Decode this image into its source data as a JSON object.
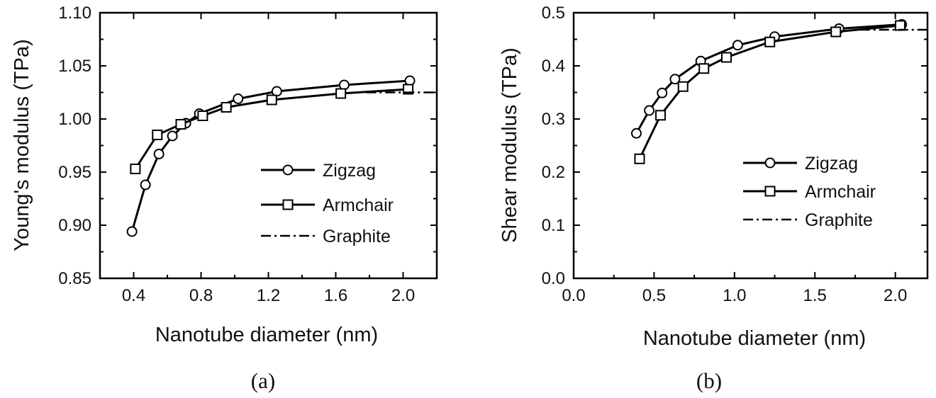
{
  "chart_data": [
    {
      "type": "line",
      "caption": "(a)",
      "xlabel": "Nanotube diameter  (nm)",
      "ylabel": "Young's modulus  (TPa)",
      "xlim": [
        0.2,
        2.2
      ],
      "ylim": [
        0.85,
        1.1
      ],
      "xticks": [
        0.4,
        0.8,
        1.2,
        1.6,
        2.0
      ],
      "xtick_labels": [
        "0.4",
        "0.8",
        "1.2",
        "1.6",
        "2.0"
      ],
      "yticks": [
        0.85,
        0.9,
        0.95,
        1.0,
        1.05,
        1.1
      ],
      "ytick_labels": [
        "0.85",
        "0.90",
        "0.95",
        "1.00",
        "1.05",
        "1.10"
      ],
      "legend_position": "bottom-right",
      "series": [
        {
          "name": "Zigzag",
          "marker": "circle",
          "x": [
            0.39,
            0.47,
            0.55,
            0.63,
            0.71,
            0.79,
            1.02,
            1.25,
            1.65,
            2.04
          ],
          "y": [
            0.894,
            0.938,
            0.967,
            0.984,
            0.996,
            1.005,
            1.019,
            1.026,
            1.032,
            1.036
          ]
        },
        {
          "name": "Armchair",
          "marker": "square",
          "x": [
            0.41,
            0.54,
            0.68,
            0.81,
            0.95,
            1.22,
            1.63,
            2.03
          ],
          "y": [
            0.953,
            0.985,
            0.995,
            1.003,
            1.011,
            1.018,
            1.024,
            1.028
          ]
        },
        {
          "name": "Graphite",
          "marker": "none",
          "style": "dash-dot",
          "x": [
            1.78,
            2.2
          ],
          "y": [
            1.025,
            1.025
          ]
        }
      ]
    },
    {
      "type": "line",
      "caption": "(b)",
      "xlabel": "Nanotube diameter  (nm)",
      "ylabel": "Shear modulus  (TPa)",
      "xlim": [
        0.0,
        2.2
      ],
      "ylim": [
        0.0,
        0.5
      ],
      "xticks": [
        0.0,
        0.5,
        1.0,
        1.5,
        2.0
      ],
      "xtick_labels": [
        "0.0",
        "0.5",
        "1.0",
        "1.5",
        "2.0"
      ],
      "yticks": [
        0.0,
        0.1,
        0.2,
        0.3,
        0.4,
        0.5
      ],
      "ytick_labels": [
        "0.0",
        "0.1",
        "0.2",
        "0.3",
        "0.4",
        "0.5"
      ],
      "legend_position": "bottom-right",
      "series": [
        {
          "name": "Zigzag",
          "marker": "circle",
          "x": [
            0.39,
            0.47,
            0.55,
            0.63,
            0.79,
            1.02,
            1.25,
            1.65,
            2.04
          ],
          "y": [
            0.273,
            0.316,
            0.349,
            0.375,
            0.409,
            0.439,
            0.455,
            0.47,
            0.478
          ]
        },
        {
          "name": "Armchair",
          "marker": "square",
          "x": [
            0.41,
            0.54,
            0.68,
            0.81,
            0.95,
            1.22,
            1.63,
            2.03
          ],
          "y": [
            0.225,
            0.307,
            0.361,
            0.395,
            0.416,
            0.445,
            0.464,
            0.476
          ]
        },
        {
          "name": "Graphite",
          "marker": "none",
          "style": "dash-dot",
          "x": [
            1.78,
            2.2
          ],
          "y": [
            0.468,
            0.468
          ]
        }
      ]
    }
  ]
}
